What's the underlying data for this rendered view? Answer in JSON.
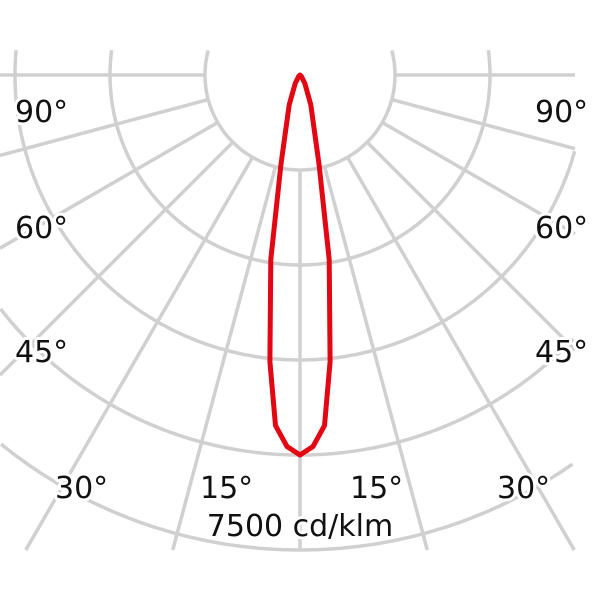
{
  "chart_data": {
    "type": "polar",
    "scale_label": "7500 cd/klm",
    "rings": 5,
    "angle_step_deg": 15,
    "angle_labels": {
      "left": [
        "90°",
        "60°",
        "45°",
        "30°",
        "15°"
      ],
      "right": [
        "90°",
        "60°",
        "45°",
        "30°",
        "15°"
      ]
    },
    "grid": true,
    "grid_color": "#d0d0d0",
    "series": [
      {
        "color": "#e30613",
        "angles_deg": [
          0,
          2,
          4,
          6,
          9,
          12,
          20,
          30,
          45,
          90
        ],
        "values_cd_klm": [
          6000,
          5870,
          5550,
          4550,
          2950,
          1450,
          500,
          150,
          30,
          0
        ]
      }
    ]
  }
}
